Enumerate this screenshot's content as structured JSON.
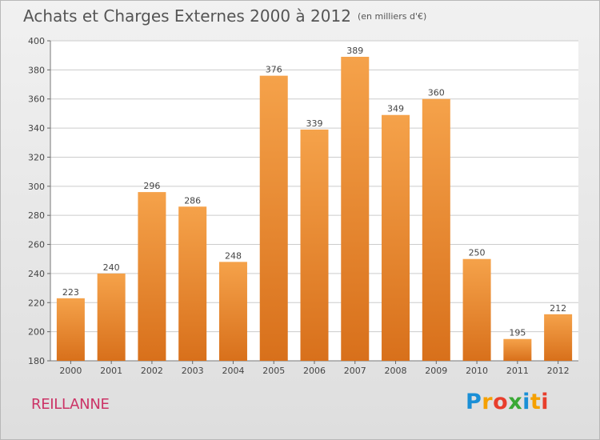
{
  "header": {
    "title": "Achats et Charges Externes 2000 à 2012",
    "unit": "(en milliers d'€)"
  },
  "footer": {
    "town": "REILLANNE",
    "brand": "Proxiti"
  },
  "colors": {
    "bar_top": "#f5a24a",
    "bar_bottom": "#d8701b",
    "town": "#cc3366",
    "grid": "#cccccc"
  },
  "chart_data": {
    "type": "bar",
    "title": "Achats et Charges Externes 2000 à 2012",
    "subtitle": "(en milliers d'€)",
    "categories": [
      "2000",
      "2001",
      "2002",
      "2003",
      "2004",
      "2005",
      "2006",
      "2007",
      "2008",
      "2009",
      "2010",
      "2011",
      "2012"
    ],
    "values": [
      223,
      240,
      296,
      286,
      248,
      376,
      339,
      389,
      349,
      360,
      250,
      195,
      212
    ],
    "ylim": [
      180,
      400
    ],
    "yticks": [
      180,
      200,
      220,
      240,
      260,
      280,
      300,
      320,
      340,
      360,
      380,
      400
    ],
    "grid": true,
    "data_labels": true
  }
}
